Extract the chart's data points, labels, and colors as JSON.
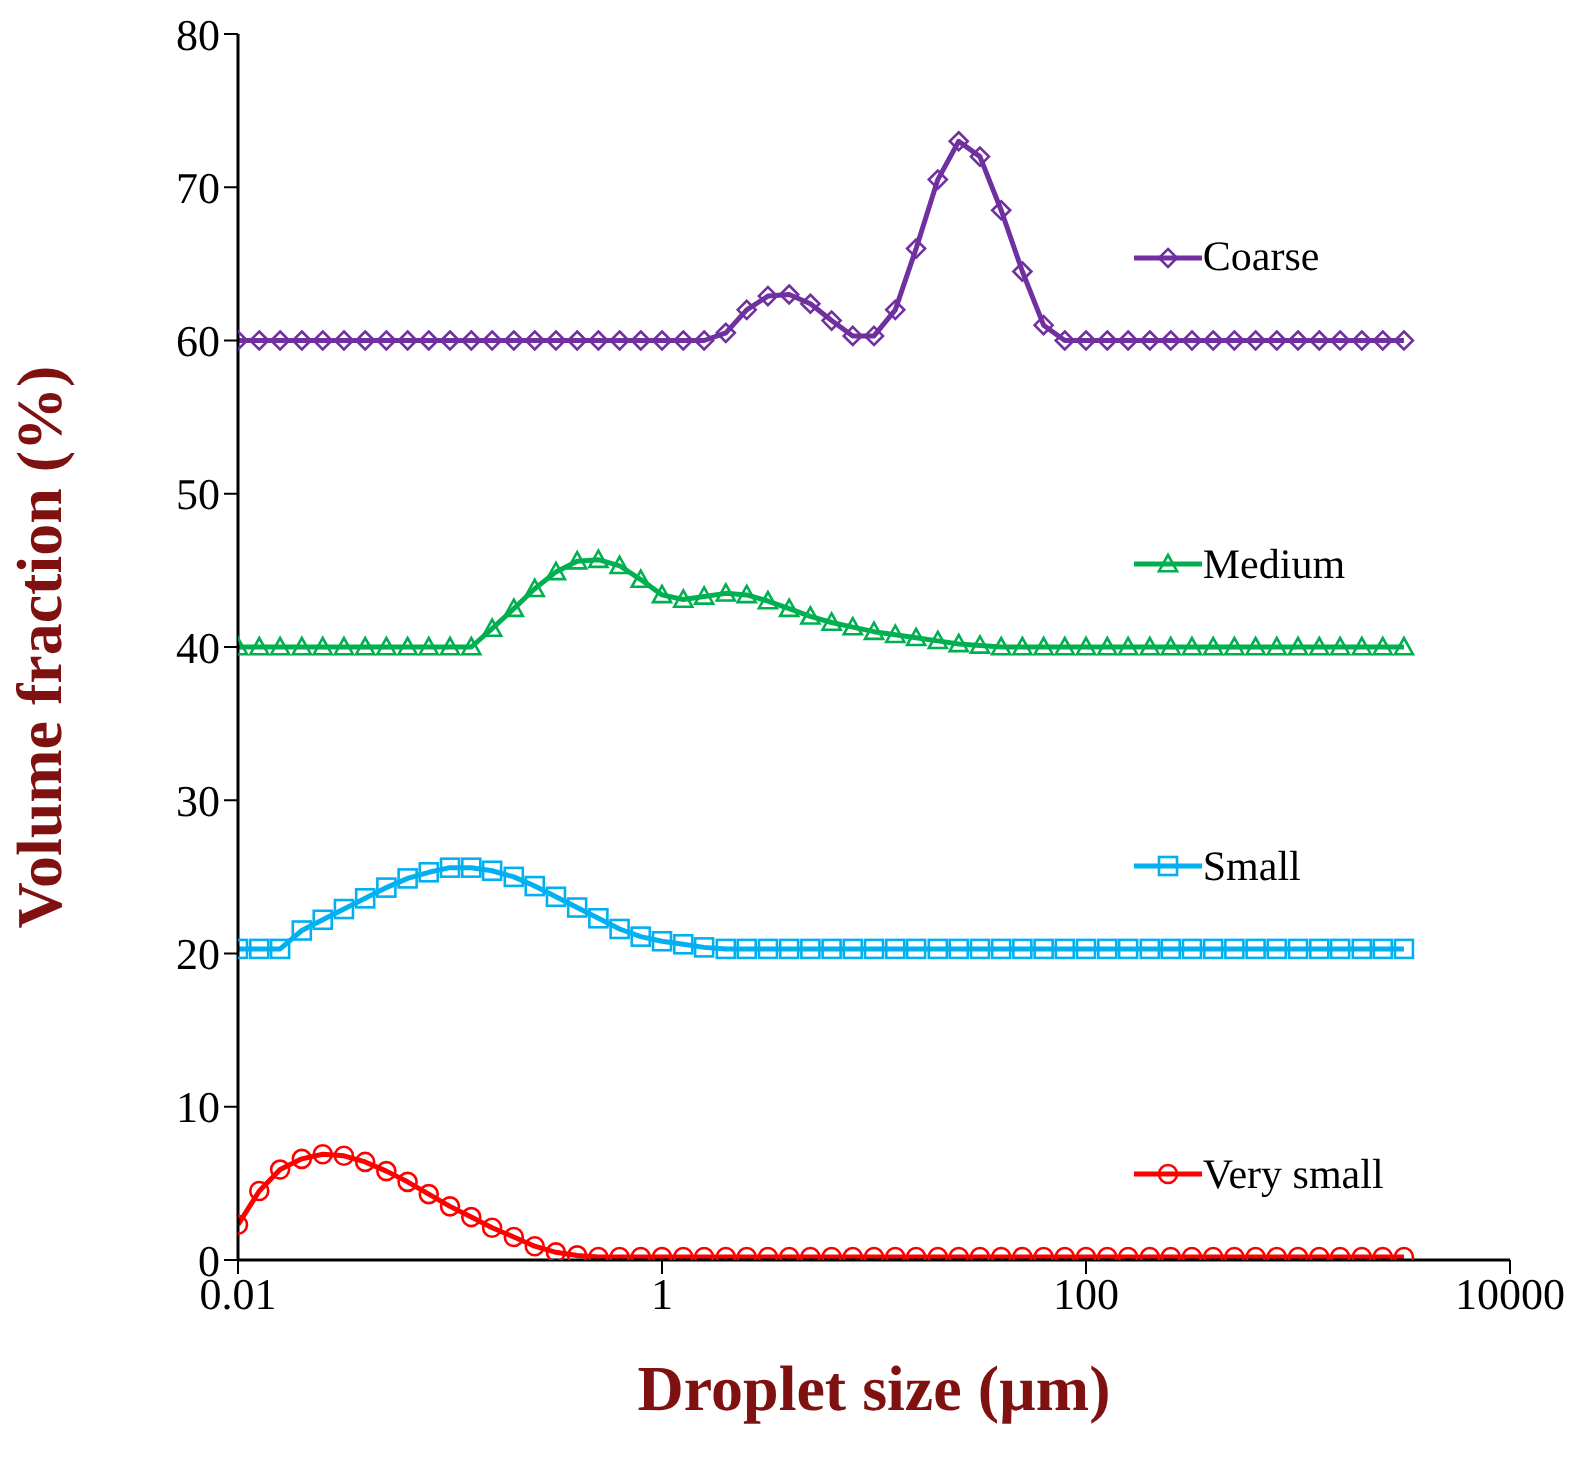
{
  "chart_data": {
    "type": "line",
    "xlabel": "Droplet size (µm)",
    "ylabel": "Volume fraction (%)",
    "x": [
      0.01,
      0.0126,
      0.0158,
      0.02,
      0.0251,
      0.0316,
      0.0398,
      0.0501,
      0.0631,
      0.0794,
      0.1,
      0.126,
      0.158,
      0.2,
      0.251,
      0.316,
      0.398,
      0.501,
      0.631,
      0.794,
      1,
      1.26,
      1.58,
      2,
      2.51,
      3.16,
      3.98,
      5.01,
      6.31,
      7.94,
      10,
      12.6,
      15.8,
      20,
      25.1,
      31.6,
      39.8,
      50.1,
      63.1,
      79.4,
      100,
      126,
      158,
      200,
      251,
      316,
      398,
      501,
      631,
      794,
      1000,
      1260,
      1580,
      2000,
      2510,
      3160
    ],
    "series": [
      {
        "name": "Coarse",
        "color": "#7030a0",
        "marker": "diamond",
        "values": [
          60,
          60,
          60,
          60,
          60,
          60,
          60,
          60,
          60,
          60,
          60,
          60,
          60,
          60,
          60,
          60,
          60,
          60,
          60,
          60,
          60,
          60,
          60,
          60.5,
          62.0,
          62.9,
          63.0,
          62.4,
          61.3,
          60.3,
          60.3,
          62.0,
          66,
          70.5,
          73.0,
          72.0,
          68.5,
          64.5,
          61.0,
          60.0,
          60,
          60,
          60,
          60,
          60,
          60,
          60,
          60,
          60,
          60,
          60,
          60,
          60,
          60,
          60,
          60
        ]
      },
      {
        "name": "Medium",
        "color": "#00b050",
        "marker": "triangle",
        "values": [
          40,
          40,
          40,
          40,
          40,
          40,
          40,
          40,
          40,
          40,
          40,
          40,
          41.2,
          42.5,
          43.8,
          44.9,
          45.6,
          45.7,
          45.3,
          44.4,
          43.4,
          43.1,
          43.3,
          43.5,
          43.4,
          43.0,
          42.5,
          42.0,
          41.6,
          41.3,
          41.0,
          40.8,
          40.6,
          40.4,
          40.2,
          40.1,
          40.0,
          40,
          40,
          40,
          40,
          40,
          40,
          40,
          40,
          40,
          40,
          40,
          40,
          40,
          40,
          40,
          40,
          40,
          40,
          40
        ]
      },
      {
        "name": "Small",
        "color": "#00b0f0",
        "marker": "square",
        "values": [
          20.3,
          20.3,
          20.3,
          21.5,
          22.2,
          22.9,
          23.6,
          24.3,
          24.9,
          25.3,
          25.6,
          25.6,
          25.4,
          25.0,
          24.4,
          23.7,
          23.0,
          22.3,
          21.6,
          21.1,
          20.8,
          20.6,
          20.4,
          20.3,
          20.3,
          20.3,
          20.3,
          20.3,
          20.3,
          20.3,
          20.3,
          20.3,
          20.3,
          20.3,
          20.3,
          20.3,
          20.3,
          20.3,
          20.3,
          20.3,
          20.3,
          20.3,
          20.3,
          20.3,
          20.3,
          20.3,
          20.3,
          20.3,
          20.3,
          20.3,
          20.3,
          20.3,
          20.3,
          20.3,
          20.3,
          20.3
        ]
      },
      {
        "name": "Very small",
        "color": "#ff0000",
        "marker": "circle",
        "values": [
          2.3,
          4.5,
          5.9,
          6.6,
          6.9,
          6.8,
          6.4,
          5.8,
          5.1,
          4.3,
          3.5,
          2.8,
          2.1,
          1.5,
          0.9,
          0.5,
          0.3,
          0.2,
          0.2,
          0.2,
          0.2,
          0.2,
          0.2,
          0.2,
          0.2,
          0.2,
          0.2,
          0.2,
          0.2,
          0.2,
          0.2,
          0.2,
          0.2,
          0.2,
          0.2,
          0.2,
          0.2,
          0.2,
          0.2,
          0.2,
          0.2,
          0.2,
          0.2,
          0.2,
          0.2,
          0.2,
          0.2,
          0.2,
          0.2,
          0.2,
          0.2,
          0.2,
          0.2,
          0.2,
          0.2,
          0.2
        ]
      }
    ],
    "log": "x",
    "xlim": [
      0.01,
      10000
    ],
    "xticks": [
      0.01,
      1,
      100,
      10000
    ],
    "ylim": [
      0,
      80
    ],
    "yticks": [
      0,
      10,
      20,
      30,
      40,
      50,
      60,
      70,
      80
    ],
    "grid": false,
    "legend": "right",
    "line_style": "solid"
  }
}
